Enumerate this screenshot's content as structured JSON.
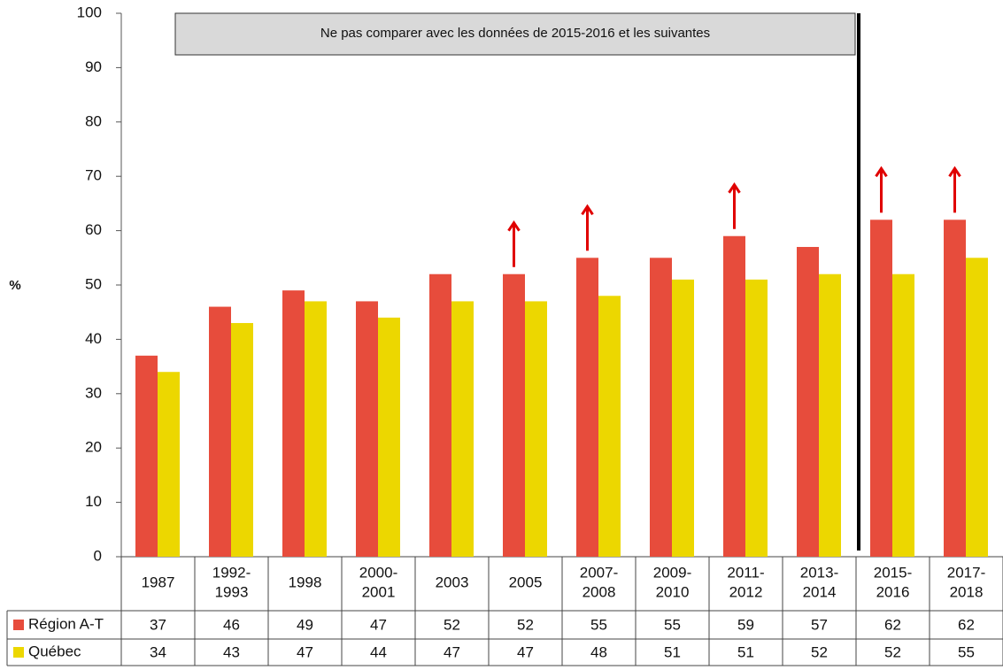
{
  "chart_data": {
    "type": "bar",
    "ylabel": "%",
    "annotation": "Ne pas comparer avec les données de 2015-2016 et les suivantes",
    "categories": [
      "1987",
      "1992-\n1993",
      "1998",
      "2000-\n2001",
      "2003",
      "2005",
      "2007-\n2008",
      "2009-\n2010",
      "2011-\n2012",
      "2013-\n2014",
      "2015-\n2016",
      "2017-\n2018"
    ],
    "series": [
      {
        "name": "Région A-T",
        "color": "#e74c3c",
        "values": [
          37,
          46,
          49,
          47,
          52,
          52,
          55,
          55,
          59,
          57,
          62,
          62
        ],
        "increase_arrows": [
          false,
          false,
          false,
          false,
          false,
          true,
          true,
          false,
          true,
          false,
          true,
          true
        ]
      },
      {
        "name": "Québec",
        "color": "#ecd700",
        "values": [
          34,
          43,
          47,
          44,
          47,
          47,
          48,
          51,
          51,
          52,
          52,
          55
        ]
      }
    ],
    "ylim": [
      0,
      100
    ],
    "yticks": [
      0,
      10,
      20,
      30,
      40,
      50,
      60,
      70,
      80,
      90,
      100
    ],
    "grid": false
  }
}
